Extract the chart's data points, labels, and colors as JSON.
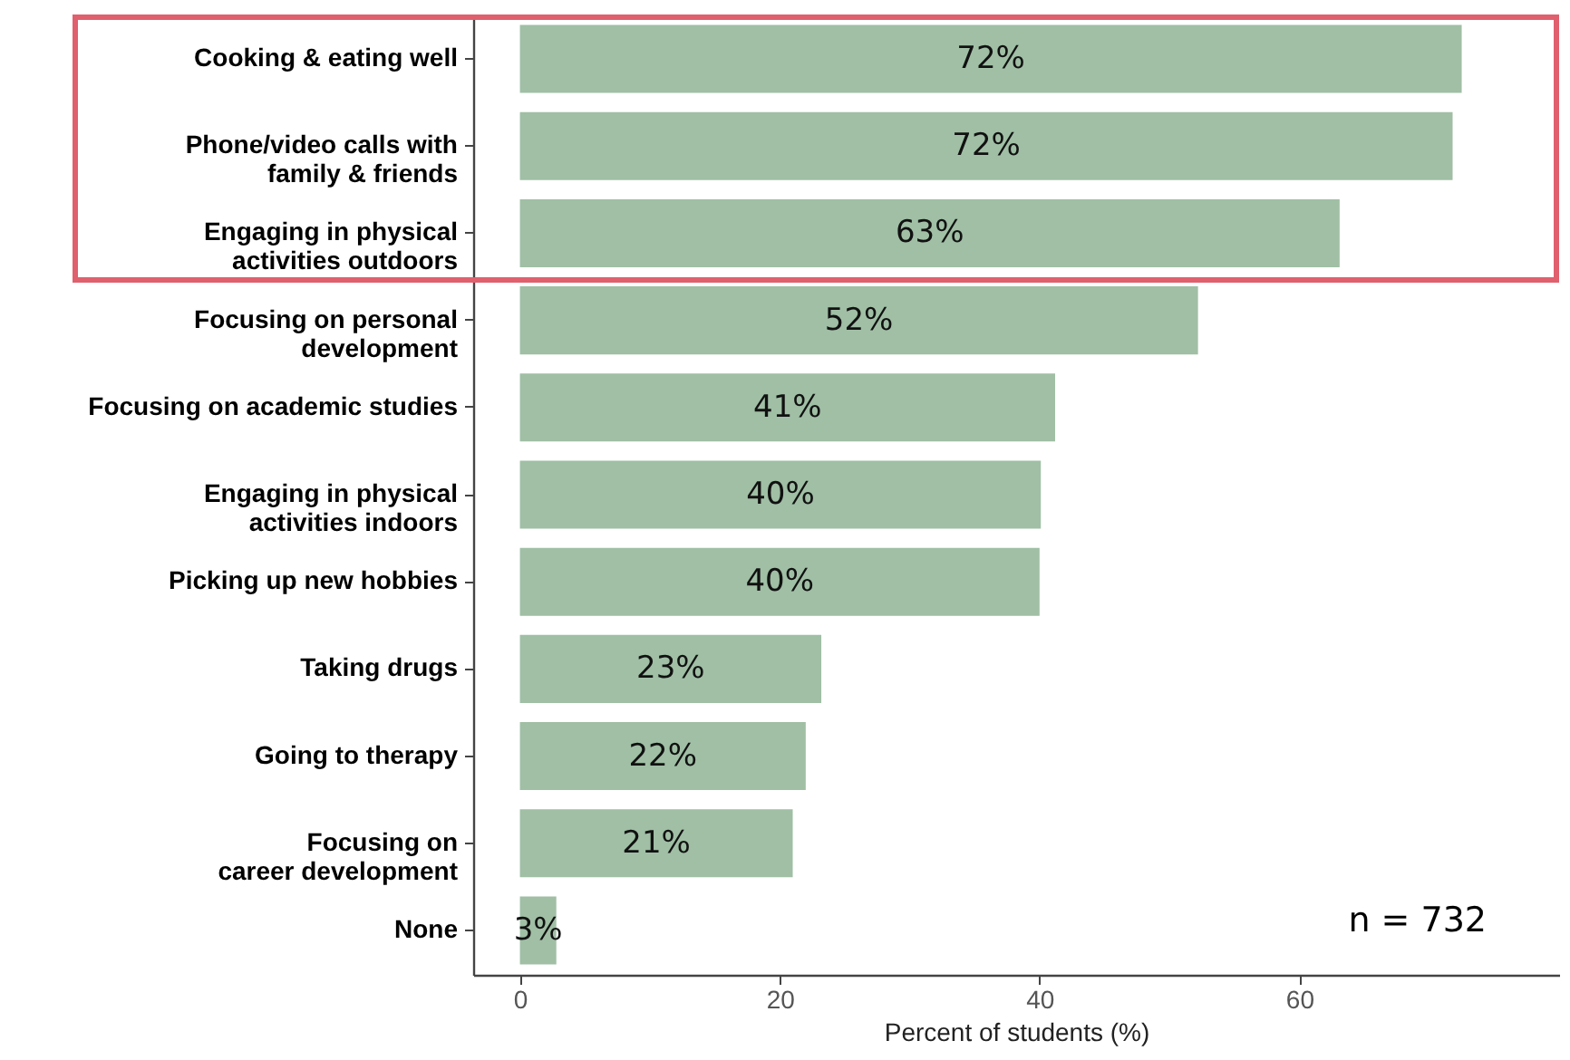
{
  "chart_data": {
    "type": "bar",
    "orientation": "horizontal",
    "xlabel": "Percent of students (%)",
    "categories": [
      "Cooking & eating well",
      "Phone/video calls with\nfamily & friends",
      "Engaging in physical\nactivities outdoors",
      "Focusing on personal\ndevelopment",
      "Focusing on academic studies",
      "Engaging in physical\nactivities indoors",
      "Picking up new hobbies",
      "Taking drugs",
      "Going to therapy",
      "Focusing on\ncareer development",
      "None"
    ],
    "values": [
      72.5,
      71.8,
      63.1,
      52.2,
      41.2,
      40.1,
      40,
      23.2,
      22,
      21,
      2.8
    ],
    "value_labels": [
      "72%",
      "72%",
      "63%",
      "52%",
      "41%",
      "40%",
      "40%",
      "23%",
      "22%",
      "21%",
      "3%"
    ],
    "color": "#a0bfa5",
    "xlim": [
      -3.6,
      80
    ],
    "xticks": [
      0,
      20,
      40,
      60
    ],
    "grid": false,
    "annotations": [
      "n = 732"
    ]
  }
}
